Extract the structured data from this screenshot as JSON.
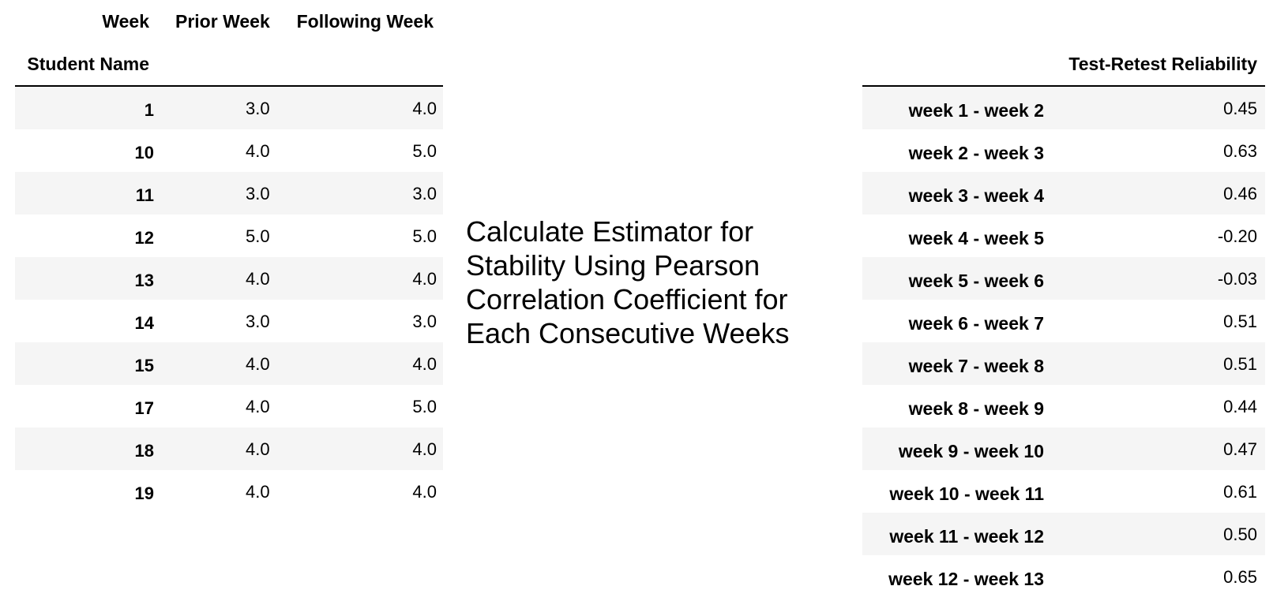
{
  "left_table": {
    "header_row1": {
      "week": "Week",
      "prior": "Prior Week",
      "following": "Following Week"
    },
    "header_row2": {
      "index_name": "Student Name"
    },
    "rows": [
      {
        "student": "1",
        "prior": "3.0",
        "following": "4.0"
      },
      {
        "student": "10",
        "prior": "4.0",
        "following": "5.0"
      },
      {
        "student": "11",
        "prior": "3.0",
        "following": "3.0"
      },
      {
        "student": "12",
        "prior": "5.0",
        "following": "5.0"
      },
      {
        "student": "13",
        "prior": "4.0",
        "following": "4.0"
      },
      {
        "student": "14",
        "prior": "3.0",
        "following": "3.0"
      },
      {
        "student": "15",
        "prior": "4.0",
        "following": "4.0"
      },
      {
        "student": "17",
        "prior": "4.0",
        "following": "5.0"
      },
      {
        "student": "18",
        "prior": "4.0",
        "following": "4.0"
      },
      {
        "student": "19",
        "prior": "4.0",
        "following": "4.0"
      }
    ]
  },
  "caption": {
    "text": "Calculate Estimator for Stability Using Pearson Correlation Coefficient for Each Consecutive Weeks"
  },
  "right_table": {
    "header": "Test-Retest Reliability",
    "rows": [
      {
        "label": "week 1 - week 2",
        "value": "0.45"
      },
      {
        "label": "week 2 - week 3",
        "value": "0.63"
      },
      {
        "label": "week 3 - week 4",
        "value": "0.46"
      },
      {
        "label": "week 4 - week 5",
        "value": "-0.20"
      },
      {
        "label": "week 5 - week 6",
        "value": "-0.03"
      },
      {
        "label": "week 6 - week 7",
        "value": "0.51"
      },
      {
        "label": "week 7 - week 8",
        "value": "0.51"
      },
      {
        "label": "week 8 - week 9",
        "value": "0.44"
      },
      {
        "label": "week 9 - week 10",
        "value": "0.47"
      },
      {
        "label": "week 10 - week 11",
        "value": "0.61"
      },
      {
        "label": "week 11 - week 12",
        "value": "0.50"
      },
      {
        "label": "week 12 - week 13",
        "value": "0.65"
      }
    ]
  }
}
